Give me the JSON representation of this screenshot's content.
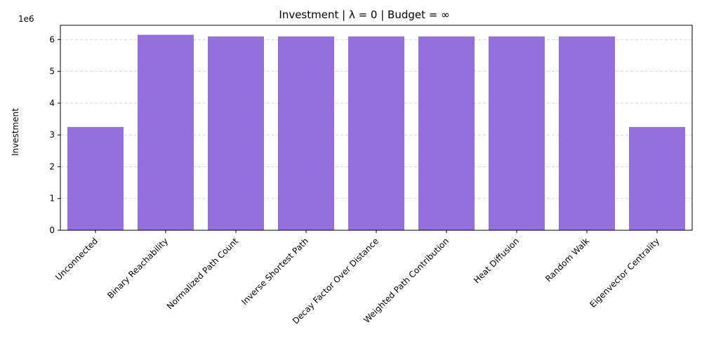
{
  "chart_data": {
    "type": "bar",
    "title": "Investment | λ = 0 | Budget = ∞",
    "xlabel": "",
    "ylabel": "Investment",
    "y_scale_label": "1e6",
    "y_tick_labels": [
      "0",
      "1",
      "2",
      "3",
      "4",
      "5",
      "6"
    ],
    "y_tick_values": [
      0,
      1000000,
      2000000,
      3000000,
      4000000,
      5000000,
      6000000
    ],
    "ylim": [
      0,
      6450000
    ],
    "grid": true,
    "bar_color": "#9370DB",
    "categories": [
      "Unconnected",
      "Binary Reachability",
      "Normalized Path Count",
      "Inverse Shortest Path",
      "Decay Factor Over Distance",
      "Weighted Path Contribution",
      "Heat Diffusion",
      "Random Walk",
      "Eigenvector Centrality"
    ],
    "values": [
      3250000,
      6150000,
      6100000,
      6100000,
      6100000,
      6100000,
      6100000,
      6100000,
      3250000
    ]
  }
}
